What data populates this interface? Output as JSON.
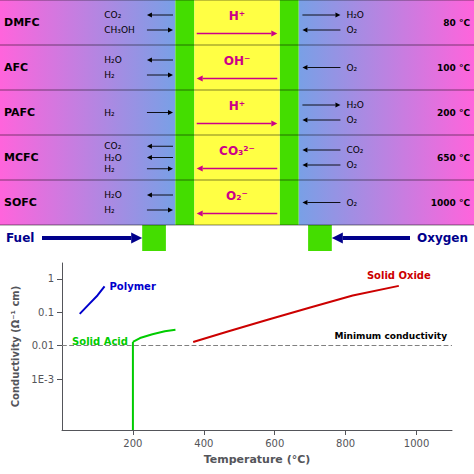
{
  "chart_data": [
    {
      "type": "diagram",
      "rows": [
        {
          "name": "DMFC",
          "temperature": "80 °C",
          "ion": "H⁺",
          "ion_direction": "right",
          "fuel_side": [
            {
              "text": "CH₃OH",
              "direction": "right"
            },
            {
              "text": "CO₂",
              "direction": "left"
            }
          ],
          "oxidant_side": [
            {
              "text": "O₂",
              "direction": "left"
            },
            {
              "text": "H₂O",
              "direction": "right"
            }
          ]
        },
        {
          "name": "AFC",
          "temperature": "100 °C",
          "ion": "OH⁻",
          "ion_direction": "left",
          "fuel_side": [
            {
              "text": "H₂",
              "direction": "right"
            },
            {
              "text": "H₂O",
              "direction": "left"
            }
          ],
          "oxidant_side": [
            {
              "text": "O₂",
              "direction": "left"
            }
          ]
        },
        {
          "name": "PAFC",
          "temperature": "200 °C",
          "ion": "H⁺",
          "ion_direction": "right",
          "fuel_side": [
            {
              "text": "H₂",
              "direction": "right"
            }
          ],
          "oxidant_side": [
            {
              "text": "O₂",
              "direction": "left"
            },
            {
              "text": "H₂O",
              "direction": "right"
            }
          ]
        },
        {
          "name": "MCFC",
          "temperature": "650 °C",
          "ion": "CO₃²⁻",
          "ion_direction": "left",
          "fuel_side": [
            {
              "text": "H₂",
              "direction": "right"
            },
            {
              "text": "H₂O",
              "direction": "left"
            },
            {
              "text": "CO₂",
              "direction": "left"
            }
          ],
          "oxidant_side": [
            {
              "text": "O₂",
              "direction": "left"
            },
            {
              "text": "CO₂",
              "direction": "left"
            }
          ]
        },
        {
          "name": "SOFC",
          "temperature": "1000 °C",
          "ion": "O₂⁻",
          "ion_direction": "left",
          "fuel_side": [
            {
              "text": "H₂",
              "direction": "right"
            },
            {
              "text": "H₂O",
              "direction": "left"
            }
          ],
          "oxidant_side": [
            {
              "text": "O₂",
              "direction": "left"
            }
          ]
        }
      ],
      "flows": [
        {
          "text": "Fuel",
          "direction": "right",
          "color": "#00008b"
        },
        {
          "text": "Oxygen",
          "direction": "left",
          "color": "#00008b"
        }
      ]
    },
    {
      "type": "line",
      "log": "y",
      "xlabel": "Temperature (°C)",
      "ylabel": "Conductivity (Ω⁻¹ cm)",
      "xlim": [
        0,
        1100
      ],
      "xticks": [
        200,
        400,
        600,
        800,
        1000
      ],
      "ylim": [
        3e-05,
        3
      ],
      "yticks": [
        {
          "value": 0.001,
          "label": "1E-3"
        },
        0.01,
        0.1,
        1
      ],
      "grid": false,
      "series": [
        {
          "name": "Polymer",
          "color": "#0000cc",
          "x": [
            50,
            75,
            100,
            120
          ],
          "values": [
            0.09,
            0.17,
            0.32,
            0.6
          ]
        },
        {
          "name": "Solid Acid",
          "color": "#00cc00",
          "x": [
            200,
            200
          ],
          "values": [
            3e-05,
            0.013
          ]
        },
        {
          "name": "Solid Acid",
          "color": "#00cc00",
          "x": [
            200,
            220,
            255,
            290,
            320
          ],
          "values": [
            0.013,
            0.017,
            0.022,
            0.027,
            0.03
          ]
        },
        {
          "name": "Solid Oxide",
          "color": "#cc0000",
          "x": [
            370,
            470,
            580,
            700,
            820,
            950
          ],
          "values": [
            0.013,
            0.027,
            0.06,
            0.14,
            0.32,
            0.62
          ]
        }
      ],
      "hlines": [
        {
          "value": 0.01,
          "label": "Minimum conductivity",
          "color": "gray",
          "line_style": "dashed"
        }
      ]
    }
  ]
}
